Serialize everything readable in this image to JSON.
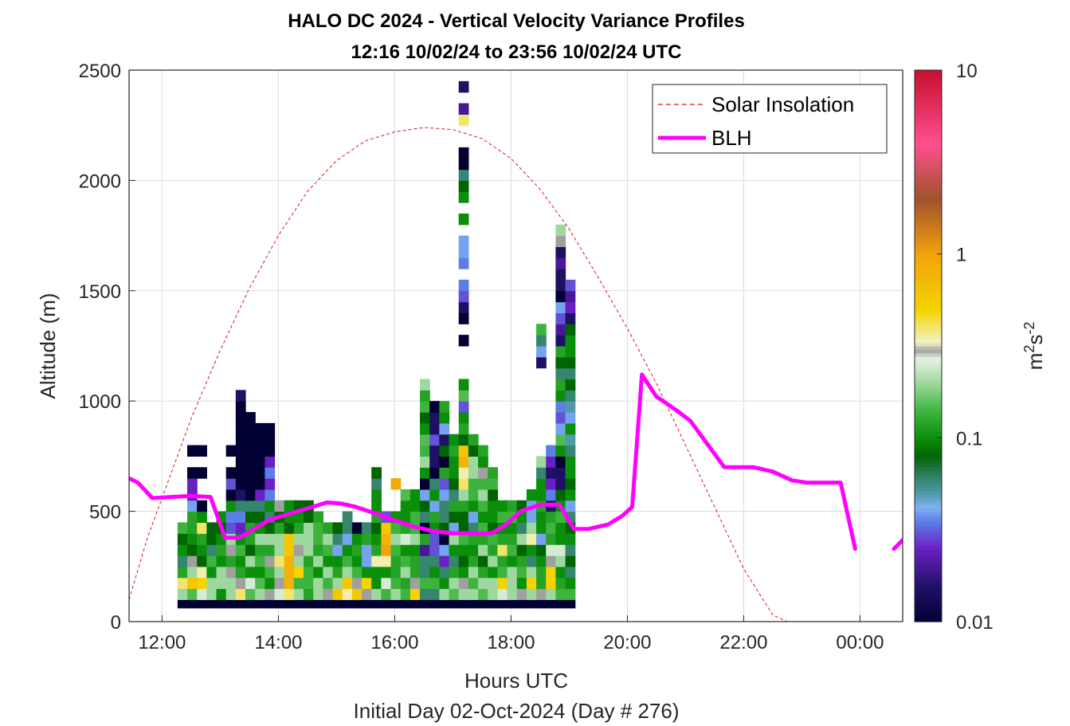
{
  "chart_data": {
    "type": "heatmap",
    "title": "HALO DC 2024 - Vertical Velocity Variance Profiles",
    "subtitle": "12:16 10/02/24 to 23:56 10/02/24  UTC",
    "xlabel": "Hours UTC",
    "xlabel2": "Initial Day 02-Oct-2024 (Day # 276)",
    "ylabel": "Altitude (m)",
    "xlim": [
      "11:26",
      "00:44"
    ],
    "ylim": [
      0,
      2500
    ],
    "x_ticks": [
      {
        "label": "12:00",
        "t": "12:00"
      },
      {
        "label": "14:00",
        "t": "14:00"
      },
      {
        "label": "16:00",
        "t": "16:00"
      },
      {
        "label": "18:00",
        "t": "18:00"
      },
      {
        "label": "20:00",
        "t": "20:00"
      },
      {
        "label": "22:00",
        "t": "22:00"
      },
      {
        "label": "00:00",
        "t": "00:00"
      }
    ],
    "y_ticks": [
      "0",
      "500",
      "1000",
      "1500",
      "2000",
      "2500"
    ],
    "grid": true,
    "colorbar": {
      "label_base": "m",
      "label_sup1": "2",
      "label_mid": "s",
      "label_sup2": "-2",
      "scale": "log",
      "range": [
        0.01,
        10
      ],
      "tick_labels": [
        "0.01",
        "0.1",
        "1",
        "10"
      ]
    },
    "legend": {
      "placement": "top-right",
      "entries": [
        {
          "name": "Solar Insolation",
          "style": "dashed",
          "color": "#d7191c"
        },
        {
          "name": "BLH",
          "style": "solid",
          "color": "#ff00ff"
        }
      ]
    },
    "colors": {
      "solar": "#d7191c",
      "blh": "#ff00ff"
    },
    "series": [
      {
        "name": "BLH",
        "t": [
          "11:26",
          "11:35",
          "11:50",
          "12:10",
          "12:30",
          "12:50",
          "13:05",
          "13:20",
          "13:35",
          "13:50",
          "14:05",
          "14:20",
          "14:35",
          "14:50",
          "15:05",
          "15:20",
          "15:40",
          "16:00",
          "16:20",
          "16:40",
          "17:00",
          "17:20",
          "17:40",
          "17:55",
          "18:10",
          "18:30",
          "18:50",
          "19:05",
          "19:20",
          "19:40",
          "19:55",
          "20:05",
          "20:15",
          "20:30",
          "20:50",
          "21:05",
          "21:30",
          "21:40",
          "21:55",
          "22:10",
          "22:30",
          "22:50",
          "23:05",
          "23:20",
          "23:40",
          "23:55",
          "00:05",
          "00:35",
          "00:44"
        ],
        "y": [
          650,
          630,
          560,
          565,
          570,
          565,
          380,
          380,
          420,
          460,
          480,
          500,
          520,
          540,
          535,
          520,
          490,
          460,
          430,
          410,
          400,
          400,
          400,
          440,
          500,
          530,
          530,
          420,
          420,
          440,
          480,
          520,
          1120,
          1020,
          960,
          910,
          760,
          700,
          700,
          700,
          680,
          640,
          630,
          630,
          630,
          330,
          null,
          330,
          370
        ]
      },
      {
        "name": "Solar Insolation",
        "t": [
          "11:26",
          "11:45",
          "12:00",
          "12:30",
          "13:00",
          "13:30",
          "14:00",
          "14:30",
          "15:00",
          "15:30",
          "16:00",
          "16:30",
          "17:00",
          "17:30",
          "18:00",
          "18:30",
          "19:00",
          "19:30",
          "20:00",
          "20:30",
          "21:00",
          "21:30",
          "22:00",
          "22:30",
          "22:45",
          "00:44"
        ],
        "y": [
          100,
          380,
          560,
          920,
          1230,
          1510,
          1750,
          1950,
          2090,
          2180,
          2220,
          2240,
          2230,
          2190,
          2100,
          1960,
          1780,
          1560,
          1330,
          1080,
          800,
          520,
          240,
          30,
          0,
          0
        ]
      }
    ],
    "heatmap": {
      "bin_minutes": 10,
      "bin_height_m": 50,
      "start": "12:16",
      "row_base_m": 100,
      "palette_stops": [
        {
          "v": 0.01,
          "c": "#000033"
        },
        {
          "v": 0.016,
          "c": "#24126b"
        },
        {
          "v": 0.025,
          "c": "#6a1fc4"
        },
        {
          "v": 0.035,
          "c": "#5c7ee6"
        },
        {
          "v": 0.042,
          "c": "#7fb1f2"
        },
        {
          "v": 0.05,
          "c": "#4f9aa8"
        },
        {
          "v": 0.063,
          "c": "#2f7f60"
        },
        {
          "v": 0.08,
          "c": "#006400"
        },
        {
          "v": 0.1,
          "c": "#0a8f0a"
        },
        {
          "v": 0.14,
          "c": "#3eb43e"
        },
        {
          "v": 0.2,
          "c": "#9fd89f"
        },
        {
          "v": 0.27,
          "c": "#e6f2e6"
        },
        {
          "v": 0.3,
          "c": "#a0a0a0"
        },
        {
          "v": 0.33,
          "c": "#f2f2c8"
        },
        {
          "v": 0.5,
          "c": "#f5d400"
        },
        {
          "v": 1.0,
          "c": "#f2a20c"
        },
        {
          "v": 2.0,
          "c": "#a0522d"
        },
        {
          "v": 4.0,
          "c": "#ff4f8f"
        },
        {
          "v": 10.0,
          "c": "#c8102e"
        }
      ],
      "bottom_row_value": 0.01,
      "columns": [
        [
          0.2,
          0.4,
          0.12,
          0.06,
          0.1,
          0.08,
          0.14
        ],
        [
          0.15,
          0.6,
          0.2,
          0.3,
          0.08,
          0.1,
          0.12,
          0.12,
          0.04,
          0.025,
          0.025,
          0.01,
          null,
          0.01
        ],
        [
          0.25,
          0.5,
          0.35,
          0.08,
          0.1,
          0.12,
          0.4,
          0.1,
          0.01,
          null,
          null,
          0.01,
          null,
          0.01
        ],
        [
          0.2,
          0.2,
          0.1,
          0.14,
          0.06,
          0.08,
          0.08
        ],
        [
          0.1,
          0.2,
          0.2,
          0.1,
          0.12,
          0.1,
          0.08,
          0.1
        ],
        [
          0.2,
          0.2,
          0.3,
          0.12,
          0.3,
          0.2,
          0.03,
          0.035,
          0.1,
          0.01,
          0.03,
          0.01,
          null,
          0.01
        ],
        [
          0.4,
          0.3,
          0.12,
          0.1,
          0.14,
          0.1,
          0.025,
          0.035,
          0.06,
          0.015,
          0.01,
          0.01,
          0.01,
          0.01,
          0.01,
          0.01,
          0.01,
          0.01,
          0.015
        ],
        [
          0.15,
          0.25,
          0.1,
          0.2,
          0.08,
          0.12,
          0.12,
          0.08,
          0.06,
          0.01,
          0.01,
          0.01,
          0.01,
          0.01,
          0.01,
          0.01,
          0.01
        ],
        [
          0.2,
          0.15,
          0.1,
          0.14,
          0.12,
          0.2,
          0.1,
          0.08,
          0.06,
          0.025,
          0.01,
          0.01,
          0.01,
          0.01,
          0.01,
          0.01
        ],
        [
          0.3,
          0.1,
          0.14,
          0.3,
          0.12,
          0.2,
          0.08,
          0.06,
          0.1,
          0.035,
          0.025,
          0.035,
          0.025,
          0.01,
          0.01,
          0.01
        ],
        [
          0.25,
          0.3,
          0.2,
          0.4,
          0.2,
          0.2,
          0.12,
          0.08,
          0.3
        ],
        [
          0.4,
          0.8,
          0.8,
          0.8,
          0.6,
          0.6,
          0.08,
          0.1,
          0.1
        ],
        [
          0.2,
          0.14,
          0.5,
          0.2,
          0.3,
          0.2,
          0.12,
          0.1,
          0.08
        ],
        [
          0.12,
          0.14,
          0.14,
          0.12,
          0.2,
          0.2,
          0.2,
          0.08,
          0.08
        ],
        [
          0.2,
          0.2,
          0.1,
          0.2,
          0.12,
          0.14,
          0.14,
          0.12
        ],
        [
          0.3,
          0.14,
          0.2,
          0.1,
          0.14,
          0.2,
          0.12
        ],
        [
          0.6,
          0.2,
          0.12,
          0.1,
          0.04,
          0.06,
          0.08
        ],
        [
          0.35,
          0.6,
          0.2,
          0.14,
          0.1,
          0.04,
          0.06,
          0.06
        ],
        [
          0.6,
          0.3,
          0.14,
          0.1,
          0.12,
          0.1,
          0.01
        ],
        [
          0.3,
          0.5,
          0.1,
          0.04,
          0.04,
          0.12,
          0.06
        ],
        [
          0.2,
          0.1,
          0.1,
          0.35,
          0.12,
          0.1,
          0.08,
          0.12,
          0.1,
          0.1,
          0.06,
          0.08
        ],
        [
          0.14,
          0.25,
          0.1,
          0.35,
          1.0,
          0.8,
          0.6,
          0.03
        ],
        [
          0.2,
          0.14,
          0.12,
          0.12,
          0.14,
          0.2,
          0.14,
          0.1,
          null,
          null,
          0.9
        ],
        [
          0.14,
          0.12,
          0.2,
          0.14,
          0.1,
          0.25,
          0.12,
          0.1,
          0.1,
          0.15
        ],
        [
          0.5,
          0.3,
          0.12,
          0.12,
          0.1,
          0.2,
          0.14,
          0.14,
          0.1,
          0.1
        ],
        [
          0.06,
          0.14,
          0.06,
          0.06,
          0.02,
          0.12,
          0.01,
          0.06,
          0.08,
          0.04,
          0.01,
          0.1,
          0.2,
          0.14,
          0.15,
          0.1,
          0.08,
          0.14,
          0.12,
          0.2
        ],
        [
          0.06,
          0.14,
          0.1,
          0.06,
          0.03,
          0.03,
          0.1,
          0.12,
          0.04,
          0.1,
          0.06,
          0.01,
          0.015,
          0.015,
          0.03,
          0.015,
          0.015,
          0.01
        ],
        [
          0.2,
          0.1,
          0.06,
          0.025,
          0.04,
          0.01,
          0.08,
          0.06,
          0.06,
          0.04,
          0.03,
          0.12,
          0.01,
          0.08,
          0.015,
          0.04,
          0.1,
          0.12
        ],
        [
          0.15,
          0.2,
          0.12,
          0.06,
          0.1,
          0.2,
          0.04,
          0.08,
          0.12,
          0.06,
          0.08,
          0.1,
          0.1,
          0.12,
          0.1
        ],
        [
          0.2,
          0.3,
          0.1,
          0.08,
          0.1,
          0.14,
          0.08,
          0.08,
          0.12,
          0.2,
          0.4,
          0.35,
          0.8,
          0.6,
          0.08,
          0.12,
          0.1,
          0.03,
          0.15,
          0.1,
          null,
          null,
          null,
          0.01,
          null,
          0.01,
          0.015,
          0.03,
          0.035,
          null,
          0.035,
          0.04,
          0.04,
          null,
          0.1,
          null,
          0.1,
          0.08,
          0.06,
          0.01,
          0.01,
          null,
          null,
          0.4,
          0.02,
          null,
          0.015
        ],
        [
          0.2,
          0.14,
          0.2,
          0.12,
          0.1,
          0.12,
          0.06,
          0.04,
          0.1,
          0.14,
          0.14,
          0.2,
          0.2,
          0.08,
          0.12
        ],
        [
          0.15,
          0.2,
          0.12,
          0.08,
          0.2,
          0.12,
          0.14,
          0.1,
          0.14,
          0.2,
          0.14,
          0.3,
          0.1,
          0.12
        ],
        [
          0.2,
          0.2,
          0.1,
          0.2,
          0.12,
          0.14,
          0.08,
          0.1,
          0.1,
          0.08,
          0.14,
          0.12
        ],
        [
          0.25,
          0.5,
          0.14,
          0.12,
          0.4,
          0.12,
          0.1,
          0.14,
          0.1
        ],
        [
          0.2,
          0.2,
          0.2,
          0.1,
          0.14,
          0.12,
          0.1,
          0.14,
          0.12
        ],
        [
          0.3,
          0.1,
          0.14,
          0.12,
          0.08,
          0.2,
          0.06,
          0.1,
          0.08
        ],
        [
          0.2,
          0.5,
          0.2,
          0.06,
          0.1,
          0.35,
          0.2,
          0.04,
          0.04,
          0.1
        ],
        [
          0.3,
          0.12,
          0.12,
          0.1,
          0.08,
          0.04,
          0.1,
          0.1,
          0.12,
          0.1,
          0.1,
          0.06,
          0.2,
          null,
          null,
          null,
          null,
          null,
          null,
          null,
          null,
          0.015,
          0.04,
          0.06,
          0.14
        ],
        [
          0.2,
          0.5,
          0.5,
          0.3,
          0.25,
          0.12,
          0.14,
          0.12,
          0.015,
          0.035,
          0.025,
          0.015,
          0.025,
          0.035
        ],
        [
          0.14,
          0.12,
          0.1,
          0.2,
          0.25,
          0.1,
          0.1,
          0.14,
          0.1,
          0.08,
          0.015,
          0.015,
          0.01,
          0.1,
          0.15,
          0.04,
          0.03,
          0.035,
          0.1,
          0.12,
          0.06,
          0.08,
          0.12,
          0.015,
          0.02,
          0.03,
          0.04,
          0.01,
          0.015,
          0.015,
          0.02,
          0.015,
          0.3,
          0.2
        ],
        [
          0.14,
          0.1,
          0.06,
          0.08,
          0.06,
          0.1,
          0.08,
          0.06,
          0.04,
          0.1,
          0.08,
          0.1,
          0.1,
          0.06,
          0.05,
          0.1,
          0.04,
          0.05,
          0.06,
          0.08,
          0.06,
          0.08,
          0.1,
          0.1,
          0.08,
          0.015,
          0.025,
          0.02,
          0.03
        ]
      ]
    }
  }
}
